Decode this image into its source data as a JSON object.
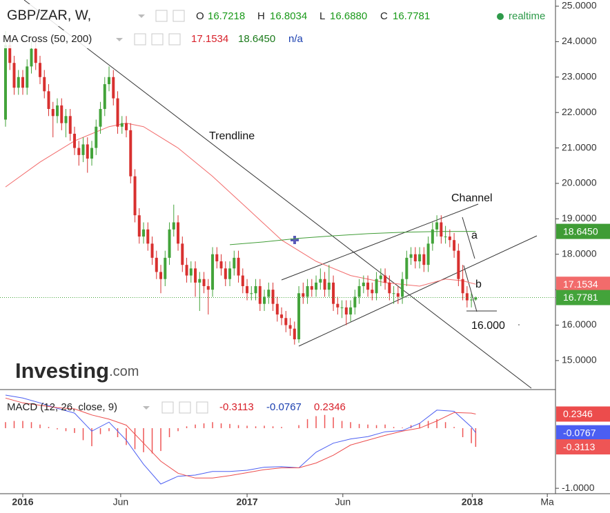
{
  "chart_data": [
    {
      "type": "candlestick",
      "title": "GBP/ZAR, W,",
      "ohlc_labels": [
        "O",
        "H",
        "L",
        "C"
      ],
      "ohlc_values": [
        "16.7218",
        "16.8034",
        "16.6880",
        "16.7781"
      ],
      "status": "realtime",
      "indicator": {
        "name": "MA Cross (50, 200)",
        "values": [
          "17.1534",
          "18.6450",
          "n/a"
        ]
      },
      "annotations": [
        "Trendline",
        "Channel",
        "a",
        "b",
        "16.000"
      ],
      "watermark": [
        "Investing",
        ".com"
      ],
      "up_color": "#43a33a",
      "down_color": "#d8302f",
      "open": [
        21.8,
        23.9,
        23.4,
        22.7,
        23.0,
        22.7,
        23.3,
        23.8,
        23.4,
        23.0,
        22.6,
        22.1,
        21.9,
        22.2,
        21.7,
        21.9,
        21.4,
        21.0,
        20.8,
        21.1,
        20.7,
        21.0,
        21.6,
        22.1,
        22.8,
        23.0,
        22.4,
        21.6,
        21.7,
        21.5,
        20.2,
        19.1,
        18.5,
        18.7,
        18.3,
        17.9,
        17.5,
        17.3,
        17.9,
        18.7,
        18.9,
        18.3,
        17.7,
        17.4,
        17.6,
        17.2,
        17.3,
        17.1,
        17.0,
        18.0,
        17.8,
        17.6,
        17.3,
        17.6,
        17.9,
        17.4,
        17.1,
        16.9,
        16.9,
        17.1,
        16.6,
        16.8,
        17.0,
        16.6,
        16.3,
        16.2,
        16.0,
        15.9,
        15.6,
        16.9,
        16.8,
        17.1,
        17.0,
        17.2,
        17.3,
        17.0,
        17.2,
        16.6,
        16.5,
        16.5,
        16.3,
        16.5,
        16.8,
        17.1,
        17.2,
        17.0,
        16.9,
        17.3,
        17.4,
        17.2,
        16.9,
        16.9,
        16.8,
        17.3,
        17.9,
        18.0,
        17.8,
        18.0,
        17.7,
        18.3,
        18.7,
        18.9,
        18.5,
        18.5,
        18.4,
        18.1,
        17.3,
        16.9,
        16.7,
        16.7218
      ],
      "high": [
        24.3,
        24.2,
        23.6,
        23.2,
        23.2,
        23.5,
        24.0,
        24.0,
        23.6,
        23.2,
        22.8,
        22.3,
        22.4,
        22.4,
        22.1,
        22.1,
        21.6,
        21.2,
        21.3,
        21.3,
        21.2,
        21.8,
        22.3,
        23.0,
        23.3,
        23.2,
        22.6,
        21.9,
        21.9,
        21.7,
        20.4,
        19.3,
        18.9,
        18.9,
        18.5,
        18.1,
        17.7,
        18.1,
        18.9,
        19.4,
        19.1,
        18.5,
        17.9,
        17.8,
        17.8,
        17.5,
        17.5,
        17.3,
        18.2,
        18.2,
        18.0,
        17.8,
        17.8,
        18.1,
        18.1,
        17.6,
        17.3,
        17.1,
        17.3,
        17.3,
        17.0,
        17.2,
        17.2,
        16.8,
        16.5,
        16.4,
        16.2,
        16.1,
        17.1,
        17.2,
        17.3,
        17.3,
        17.4,
        17.6,
        17.5,
        17.7,
        17.4,
        16.8,
        16.7,
        16.7,
        16.7,
        17.0,
        17.3,
        17.4,
        17.4,
        17.2,
        17.5,
        17.6,
        17.6,
        17.4,
        17.1,
        17.1,
        17.5,
        18.1,
        18.2,
        18.2,
        18.2,
        18.2,
        18.5,
        18.9,
        19.1,
        19.1,
        18.8,
        18.7,
        18.6,
        18.3,
        17.7,
        17.1,
        16.9,
        16.8034
      ],
      "low": [
        21.6,
        23.2,
        22.5,
        22.5,
        22.5,
        22.5,
        23.1,
        23.2,
        22.8,
        22.4,
        21.9,
        21.3,
        21.7,
        21.5,
        21.3,
        21.2,
        20.8,
        20.5,
        20.6,
        20.3,
        20.5,
        20.8,
        21.4,
        21.9,
        22.6,
        22.2,
        21.4,
        21.4,
        21.3,
        20.0,
        18.9,
        18.3,
        18.3,
        18.1,
        17.7,
        17.3,
        16.9,
        17.1,
        17.7,
        18.5,
        18.1,
        17.5,
        17.2,
        17.2,
        16.8,
        16.4,
        16.9,
        16.3,
        16.8,
        17.6,
        17.4,
        17.1,
        17.1,
        17.4,
        17.2,
        16.9,
        16.7,
        16.7,
        16.7,
        16.4,
        16.4,
        16.6,
        16.4,
        16.1,
        16.0,
        15.8,
        15.7,
        15.45,
        15.5,
        16.6,
        16.6,
        16.8,
        16.8,
        17.0,
        16.8,
        16.8,
        16.4,
        16.3,
        16.2,
        16.0,
        16.1,
        16.3,
        16.6,
        16.9,
        16.8,
        16.7,
        16.7,
        17.1,
        17.0,
        16.7,
        16.6,
        16.6,
        16.6,
        17.1,
        17.7,
        17.6,
        17.6,
        17.5,
        17.5,
        18.1,
        18.5,
        18.3,
        18.3,
        18.2,
        17.9,
        17.1,
        16.7,
        16.5,
        16.5,
        16.688
      ],
      "close": [
        23.9,
        23.4,
        22.7,
        23.0,
        22.7,
        23.3,
        23.8,
        23.4,
        23.0,
        22.6,
        22.1,
        21.9,
        22.2,
        21.7,
        21.9,
        21.4,
        21.0,
        20.8,
        21.1,
        20.7,
        21.0,
        21.6,
        22.1,
        22.8,
        23.0,
        22.4,
        21.6,
        21.7,
        21.5,
        20.2,
        19.1,
        18.5,
        18.7,
        18.3,
        17.9,
        17.5,
        17.3,
        17.9,
        18.7,
        18.9,
        18.3,
        17.7,
        17.4,
        17.6,
        17.2,
        17.3,
        17.1,
        17.0,
        18.0,
        17.8,
        17.6,
        17.3,
        17.6,
        17.9,
        17.4,
        17.1,
        16.9,
        16.9,
        17.1,
        16.6,
        16.8,
        17.0,
        16.6,
        16.3,
        16.2,
        16.0,
        15.9,
        15.6,
        16.9,
        16.8,
        17.1,
        17.0,
        17.2,
        17.3,
        17.0,
        17.2,
        16.6,
        16.5,
        16.5,
        16.3,
        16.5,
        16.8,
        17.1,
        17.2,
        17.0,
        16.9,
        17.3,
        17.4,
        17.2,
        16.9,
        16.9,
        16.8,
        17.3,
        17.9,
        18.0,
        17.8,
        18.0,
        17.7,
        18.3,
        18.7,
        18.9,
        18.5,
        18.5,
        18.4,
        18.1,
        17.3,
        16.9,
        16.7,
        16.72,
        16.7781
      ],
      "series": [
        {
          "color": "#f26b6b",
          "x": [
            0,
            8,
            16,
            24,
            28,
            32,
            40,
            48,
            56,
            64,
            72,
            80,
            88,
            96,
            102,
            106,
            109
          ],
          "values": [
            19.9,
            20.6,
            21.2,
            21.6,
            21.7,
            21.6,
            21.0,
            20.2,
            19.3,
            18.4,
            17.8,
            17.4,
            17.2,
            17.1,
            17.3,
            17.25,
            17.1534
          ]
        },
        {
          "color": "#3f9c35",
          "x": [
            52,
            60,
            68,
            76,
            84,
            92,
            100,
            109
          ],
          "values": [
            18.27,
            18.35,
            18.45,
            18.52,
            18.58,
            18.62,
            18.64,
            18.645
          ]
        }
      ],
      "xlim": [
        -1.28,
        127.5
      ],
      "ylim": [
        14.22,
        25.175
      ],
      "yticks": [
        {
          "value": 15,
          "label": "15.0000"
        },
        {
          "value": 16,
          "label": "16.0000"
        },
        {
          "value": 17,
          "label": "17.0000"
        },
        {
          "value": 18,
          "label": "18.0000"
        },
        {
          "value": 19,
          "label": "19.0000"
        },
        {
          "value": 20,
          "label": "20.0000"
        },
        {
          "value": 21,
          "label": "21.0000"
        },
        {
          "value": 22,
          "label": "22.0000"
        },
        {
          "value": 23,
          "label": "23.0000"
        },
        {
          "value": 24,
          "label": "24.0000"
        },
        {
          "value": 25,
          "label": "25.0000"
        }
      ]
    },
    {
      "type": "macd",
      "title": "MACD (12, 26, close, 9)",
      "legend_values": [
        "-0.3113",
        "-0.0767",
        "0.2346"
      ],
      "series": [
        {
          "color": "#4b5ef2",
          "x": [
            0,
            4,
            8,
            12,
            16,
            20,
            24,
            28,
            32,
            36,
            40,
            44,
            48,
            52,
            56,
            60,
            64,
            68,
            72,
            76,
            80,
            84,
            88,
            92,
            96,
            100,
            104,
            108,
            109
          ],
          "values": [
            0.55,
            0.5,
            0.42,
            0.33,
            0.25,
            -0.05,
            0.1,
            -0.2,
            -0.6,
            -0.93,
            -0.8,
            -0.78,
            -0.72,
            -0.72,
            -0.7,
            -0.65,
            -0.64,
            -0.66,
            -0.4,
            -0.25,
            -0.18,
            -0.14,
            -0.06,
            -0.04,
            0.08,
            0.3,
            0.28,
            0.02,
            -0.0767
          ]
        },
        {
          "color": "#ec4c4c",
          "x": [
            0,
            4,
            8,
            12,
            16,
            20,
            24,
            28,
            32,
            36,
            40,
            44,
            48,
            52,
            56,
            60,
            64,
            68,
            72,
            76,
            80,
            84,
            88,
            92,
            96,
            100,
            104,
            108,
            109
          ],
          "values": [
            0.5,
            0.42,
            0.38,
            0.34,
            0.32,
            0.22,
            0.15,
            0.05,
            -0.25,
            -0.55,
            -0.75,
            -0.83,
            -0.83,
            -0.79,
            -0.74,
            -0.69,
            -0.66,
            -0.66,
            -0.58,
            -0.45,
            -0.28,
            -0.2,
            -0.12,
            -0.05,
            0.0,
            0.12,
            0.26,
            0.25,
            0.2346
          ]
        }
      ],
      "histogram": {
        "color": "#ee5555",
        "x": [
          0,
          2,
          4,
          6,
          8,
          10,
          12,
          14,
          16,
          18,
          20,
          22,
          24,
          26,
          28,
          30,
          32,
          34,
          36,
          38,
          40,
          42,
          44,
          46,
          48,
          50,
          52,
          54,
          56,
          58,
          60,
          62,
          64,
          66,
          68,
          70,
          72,
          74,
          76,
          78,
          80,
          82,
          84,
          86,
          88,
          90,
          92,
          94,
          96,
          98,
          100,
          102,
          104,
          106,
          108,
          109
        ],
        "values": [
          0.1,
          0.12,
          0.12,
          0.1,
          0.06,
          0.02,
          -0.02,
          -0.05,
          -0.08,
          -0.2,
          -0.3,
          -0.1,
          -0.05,
          -0.15,
          -0.28,
          -0.35,
          -0.4,
          -0.42,
          -0.38,
          -0.15,
          -0.05,
          0.03,
          0.06,
          0.08,
          0.1,
          0.08,
          0.07,
          0.05,
          0.04,
          0.03,
          0.04,
          0.03,
          0.02,
          0.0,
          0.05,
          0.15,
          0.2,
          0.22,
          0.18,
          0.12,
          0.1,
          0.07,
          0.06,
          0.05,
          0.06,
          0.02,
          0.01,
          0.05,
          0.08,
          0.12,
          0.15,
          0.1,
          0.02,
          -0.15,
          -0.25,
          -0.3113
        ]
      },
      "xlim": [
        -1.28,
        127.5
      ],
      "ylim": [
        -1.09,
        0.63
      ],
      "yticks": [
        {
          "value": -1,
          "label": "-1.0000"
        }
      ],
      "xticks": [
        {
          "value": 4,
          "label": "2016"
        },
        {
          "value": 26.7,
          "label": "Jun"
        },
        {
          "value": 56,
          "label": "2017"
        },
        {
          "value": 78.2,
          "label": "Jun"
        },
        {
          "value": 108.2,
          "label": "2018"
        },
        {
          "value": 125.6,
          "label": "Ma"
        }
      ]
    }
  ]
}
